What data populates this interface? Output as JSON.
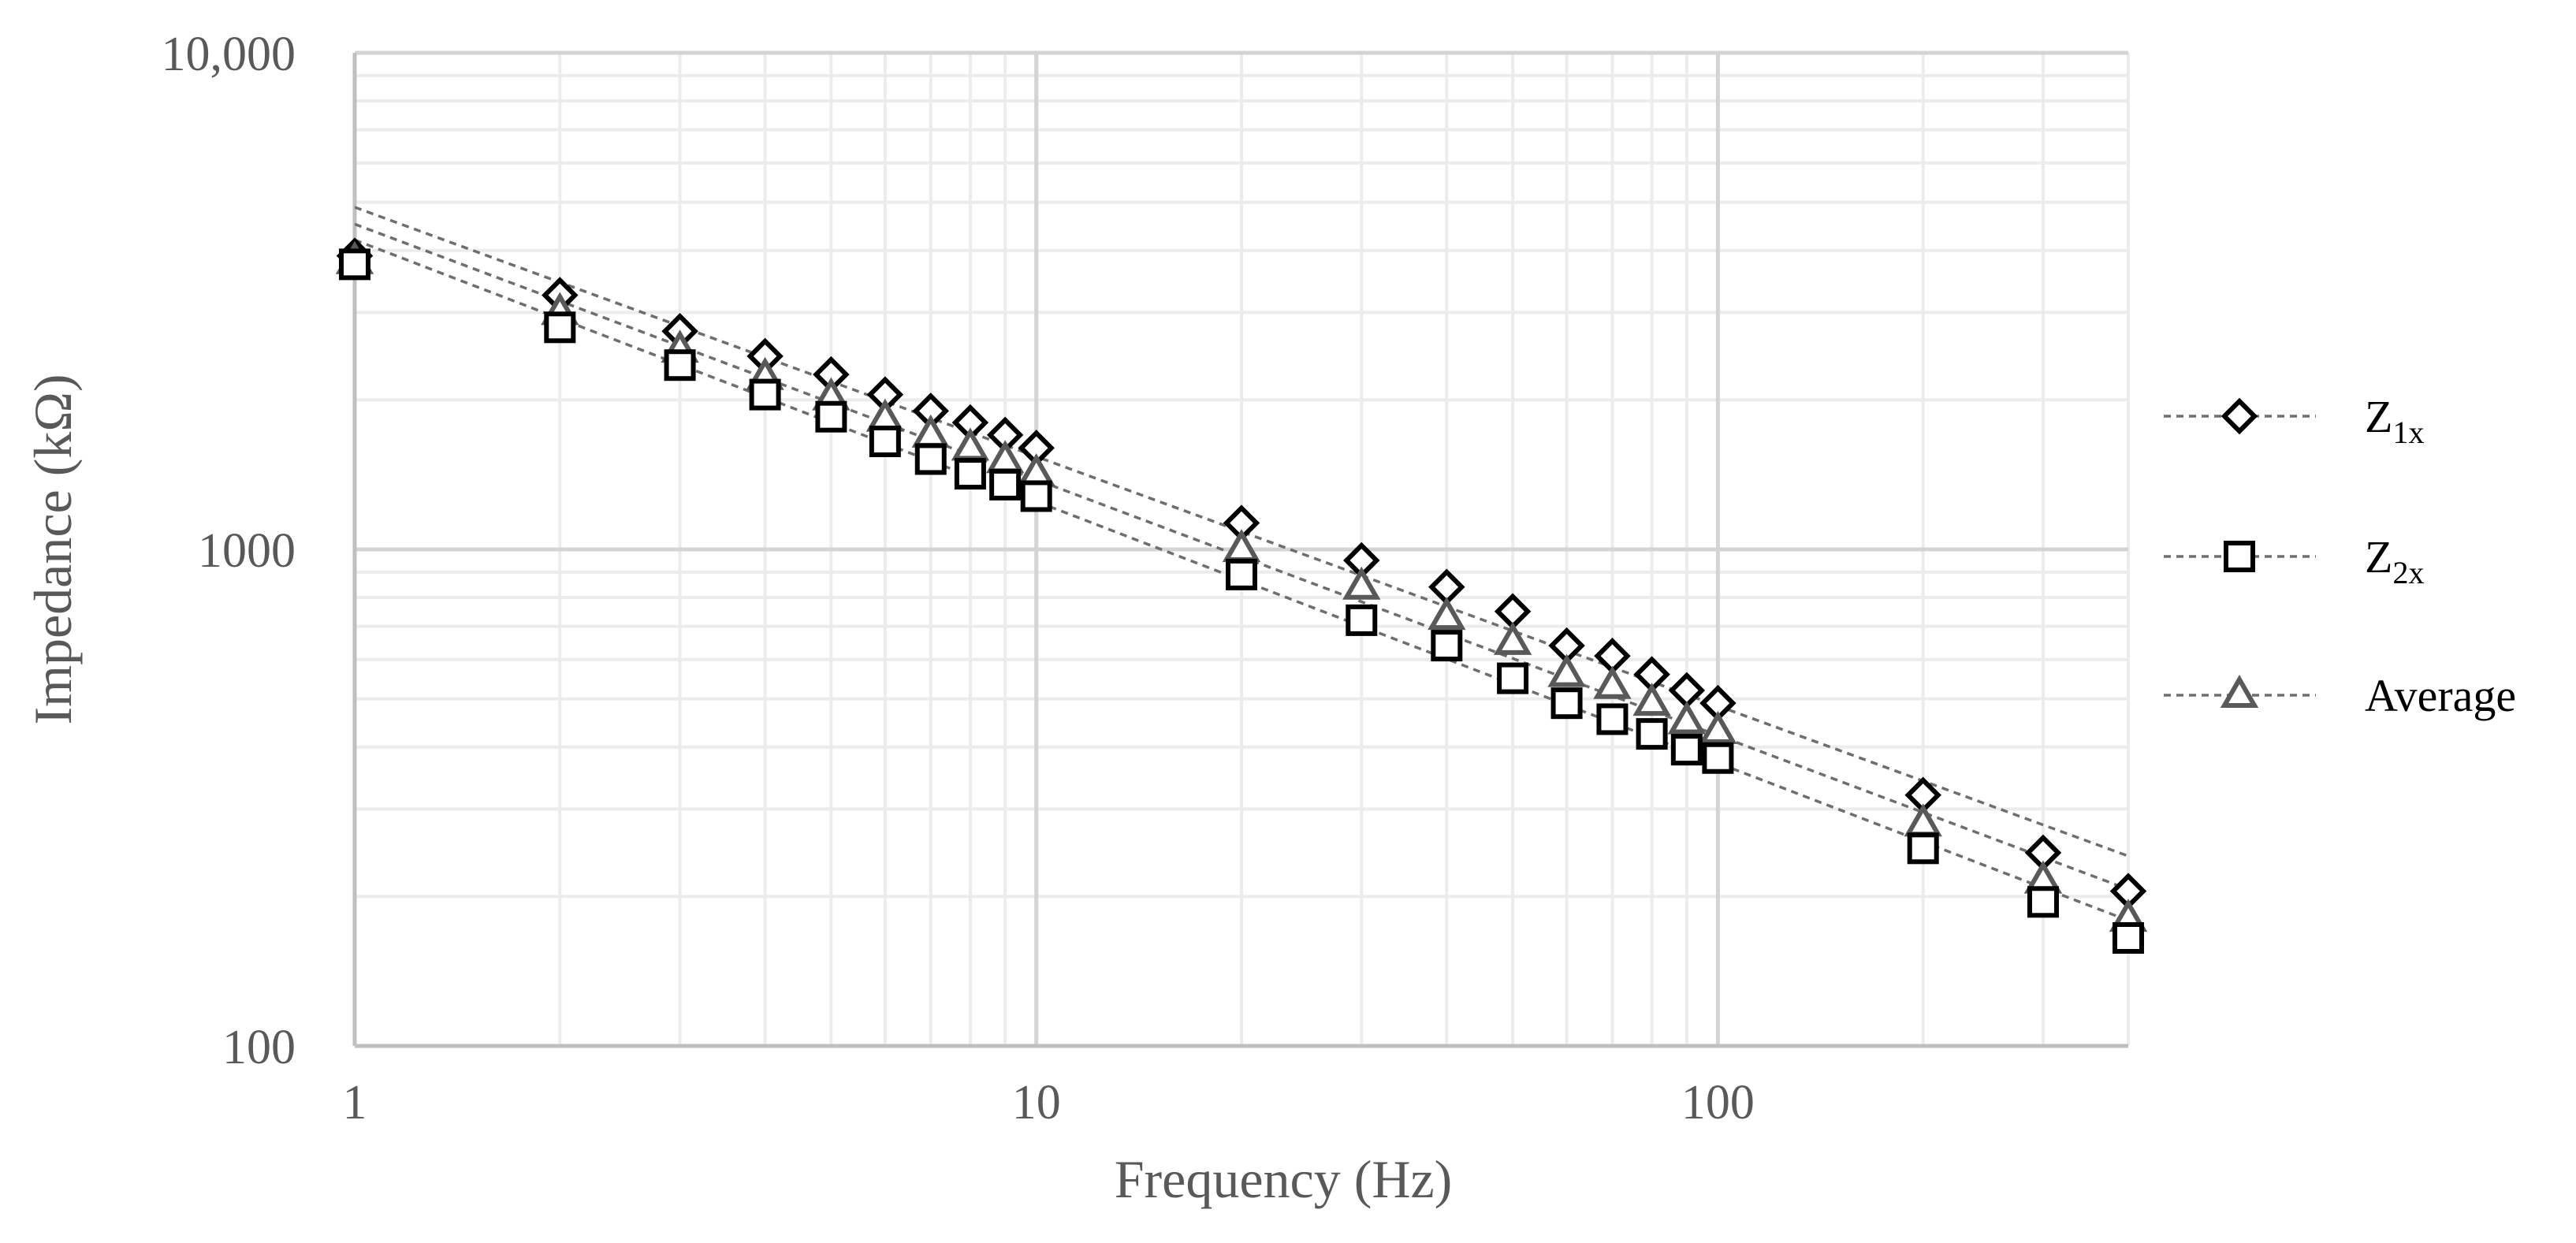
{
  "chart_data": {
    "type": "scatter",
    "xscale": "log",
    "yscale": "log",
    "xlabel": "Frequency (Hz)",
    "ylabel": "Impedance (kΩ)",
    "xlim": [
      1,
      400
    ],
    "ylim": [
      100,
      10000
    ],
    "xticks": [
      {
        "value": 1,
        "label": "1"
      },
      {
        "value": 10,
        "label": "10"
      },
      {
        "value": 100,
        "label": "100"
      }
    ],
    "yticks": [
      {
        "value": 100,
        "label": "100"
      },
      {
        "value": 1000,
        "label": "1000"
      },
      {
        "value": 10000,
        "label": "10,000"
      }
    ],
    "grid": true,
    "legend_position": "right",
    "x": [
      1,
      2,
      3,
      4,
      5,
      6,
      7,
      8,
      9,
      10,
      20,
      30,
      40,
      50,
      60,
      70,
      80,
      90,
      100,
      200,
      300,
      400
    ],
    "series": [
      {
        "name": "Z",
        "subscript": "1x",
        "marker": "diamond",
        "color": "#000000",
        "values": [
          3900,
          3250,
          2750,
          2450,
          2250,
          2050,
          1900,
          1800,
          1700,
          1600,
          1130,
          950,
          840,
          750,
          640,
          610,
          560,
          520,
          490,
          320,
          245,
          205
        ]
      },
      {
        "name": "Z",
        "subscript": "2x",
        "marker": "square",
        "color": "#000000",
        "values": [
          3750,
          2800,
          2350,
          2050,
          1850,
          1650,
          1520,
          1420,
          1350,
          1280,
          890,
          720,
          640,
          550,
          490,
          455,
          425,
          395,
          380,
          250,
          195,
          165
        ]
      },
      {
        "name": "Average",
        "subscript": "",
        "marker": "triangle",
        "color": "#595959",
        "values": [
          3800,
          3000,
          2520,
          2220,
          2020,
          1830,
          1700,
          1600,
          1510,
          1420,
          1000,
          840,
          730,
          650,
          560,
          530,
          490,
          450,
          430,
          280,
          215,
          180
        ]
      }
    ],
    "trendline_style": "dotted"
  }
}
